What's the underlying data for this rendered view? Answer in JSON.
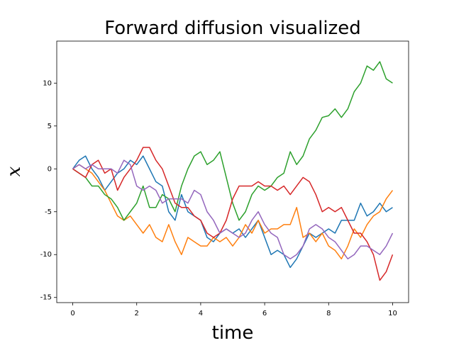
{
  "chart_data": {
    "type": "line",
    "title": "Forward diffusion visualized",
    "x_label": "time",
    "y_label": "x",
    "x": [
      0,
      0.2,
      0.4,
      0.6,
      0.8,
      1,
      1.2,
      1.4,
      1.6,
      1.8,
      2,
      2.2,
      2.4,
      2.6,
      2.8,
      3,
      3.2,
      3.4,
      3.6,
      3.8,
      4,
      4.2,
      4.4,
      4.6,
      4.8,
      5,
      5.2,
      5.4,
      5.6,
      5.8,
      6,
      6.2,
      6.4,
      6.6,
      6.8,
      7,
      7.2,
      7.4,
      7.6,
      7.8,
      8,
      8.2,
      8.4,
      8.6,
      8.8,
      9,
      9.2,
      9.4,
      9.6,
      9.8,
      10
    ],
    "series": [
      {
        "color": "#1f77b4",
        "values": [
          0,
          1,
          1.5,
          0,
          -1,
          -2.5,
          -1.5,
          -0.5,
          0,
          1,
          0.5,
          1.5,
          0,
          -1.5,
          -2,
          -5,
          -6,
          -3,
          -5,
          -5.5,
          -6,
          -8,
          -8.5,
          -7.5,
          -7,
          -7.5,
          -7,
          -8,
          -7,
          -6,
          -8,
          -10,
          -9.5,
          -10,
          -11.5,
          -10.5,
          -9,
          -7.5,
          -8,
          -7.5,
          -7,
          -7.5,
          -6,
          -6,
          -6,
          -4,
          -5.5,
          -5,
          -4,
          -5,
          -4.5
        ]
      },
      {
        "color": "#ff7f0e",
        "values": [
          0,
          0.5,
          0,
          -0.5,
          -1.5,
          -2.5,
          -4,
          -5.5,
          -6,
          -5.5,
          -6.5,
          -7.5,
          -6.5,
          -8,
          -8.5,
          -6.5,
          -8.5,
          -10,
          -8,
          -8.5,
          -9,
          -9,
          -8,
          -8.5,
          -8,
          -9,
          -8,
          -6.5,
          -7.5,
          -6,
          -7.5,
          -7,
          -7,
          -6.5,
          -6.5,
          -4.5,
          -8,
          -7.5,
          -8.5,
          -7.5,
          -9,
          -9.5,
          -10.5,
          -9,
          -7,
          -8,
          -6.5,
          -5.5,
          -5,
          -3.5,
          -2.5
        ]
      },
      {
        "color": "#2ca02c",
        "values": [
          0,
          -0.5,
          -1,
          -2,
          -2,
          -3,
          -3.5,
          -4.5,
          -6,
          -5,
          -4,
          -2,
          -4.5,
          -4.5,
          -3,
          -3.5,
          -5,
          -2,
          0,
          1.5,
          2,
          0.5,
          1,
          2,
          -1,
          -4,
          -6,
          -5,
          -3,
          -2,
          -2.5,
          -2,
          -1,
          -0.5,
          2,
          0.5,
          1.5,
          3.5,
          4.5,
          6,
          6.2,
          7,
          6,
          7,
          9,
          10,
          12,
          11.5,
          12.5,
          10.5,
          10
        ]
      },
      {
        "color": "#d62728",
        "values": [
          0,
          -0.5,
          -1,
          0.5,
          1,
          -0.5,
          0,
          -2.5,
          -1,
          0,
          1,
          2.5,
          2.5,
          1,
          0,
          -2,
          -4,
          -4.5,
          -4.5,
          -5.5,
          -6,
          -7.5,
          -8,
          -7.5,
          -6,
          -3.5,
          -2,
          -2,
          -2,
          -1.5,
          -2,
          -2,
          -2.5,
          -2,
          -3,
          -2,
          -1,
          -1.5,
          -3,
          -5,
          -4.5,
          -5,
          -4.5,
          -6,
          -7.5,
          -7.5,
          -8.5,
          -10,
          -13,
          -12,
          -10
        ]
      },
      {
        "color": "#9467bd",
        "values": [
          0,
          0.5,
          0,
          0.5,
          0,
          0,
          0,
          -0.5,
          1,
          0.5,
          -2,
          -2.5,
          -2,
          -2.5,
          -4,
          -3.5,
          -3.5,
          -3.5,
          -4,
          -2.5,
          -3,
          -5,
          -6,
          -7.5,
          -7,
          -7.5,
          -8,
          -7.5,
          -6,
          -5,
          -6.5,
          -7.5,
          -8,
          -10,
          -10.5,
          -10,
          -9,
          -7,
          -6.5,
          -7,
          -8,
          -8.5,
          -9.5,
          -10.5,
          -10,
          -9,
          -9,
          -9.5,
          -10,
          -9,
          -7.5
        ]
      }
    ],
    "xlim": [
      -0.5,
      10.5
    ],
    "ylim": [
      -15.6,
      14.9
    ],
    "xticks": [
      0,
      2,
      4,
      6,
      8,
      10
    ],
    "yticks": [
      -15,
      -10,
      -5,
      0,
      5,
      10
    ]
  }
}
